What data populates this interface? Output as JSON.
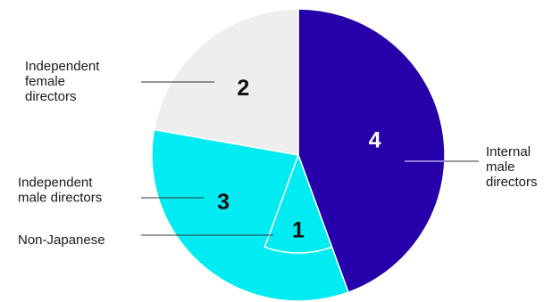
{
  "chart_data": {
    "type": "pie",
    "title": "",
    "start_angle_deg": 0,
    "direction": "clockwise",
    "colors_in_series_order": [
      "#2600a8",
      "#00ecf2",
      "#eeeeee"
    ],
    "slices": [
      {
        "key": "internal",
        "label": [
          "Internal",
          "male",
          "directors"
        ],
        "value": 4,
        "value_label": "4",
        "color": "#2600a8",
        "value_color": "#ffffff"
      },
      {
        "key": "independent_male",
        "label": [
          "Independent",
          "male directors"
        ],
        "value": 3,
        "value_label": "3",
        "color": "#00ecf2",
        "value_color": "#111111",
        "subgroup": {
          "label": [
            "Non-Japanese"
          ],
          "value": 1,
          "value_label": "1",
          "note": "subset of independent male directors, outlined with a white arc"
        }
      },
      {
        "key": "independent_female",
        "label": [
          "Independent",
          "female",
          "directors"
        ],
        "value": 2,
        "value_label": "2",
        "color": "#eeeeee",
        "value_color": "#111111"
      }
    ]
  }
}
